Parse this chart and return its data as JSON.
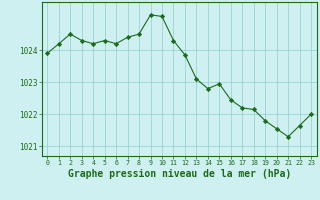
{
  "x": [
    0,
    1,
    2,
    3,
    4,
    5,
    6,
    7,
    8,
    9,
    10,
    11,
    12,
    13,
    14,
    15,
    16,
    17,
    18,
    19,
    20,
    21,
    22,
    23
  ],
  "y": [
    1023.9,
    1024.2,
    1024.5,
    1024.3,
    1024.2,
    1024.3,
    1024.2,
    1024.4,
    1024.5,
    1025.1,
    1025.05,
    1024.3,
    1023.85,
    1023.1,
    1022.8,
    1022.95,
    1022.45,
    1022.2,
    1022.15,
    1021.8,
    1021.55,
    1021.3,
    1021.65,
    1022.0
  ],
  "line_color": "#1a6b1a",
  "marker": "D",
  "marker_size": 2.2,
  "background_color": "#cff0f0",
  "grid_color": "#8ecece",
  "axis_color": "#1a6b1a",
  "xlabel": "Graphe pression niveau de la mer (hPa)",
  "xlabel_fontsize": 7,
  "ylabel_ticks": [
    1021,
    1022,
    1023,
    1024
  ],
  "ylim": [
    1020.7,
    1025.5
  ],
  "xlim": [
    -0.5,
    23.5
  ],
  "xtick_labels": [
    "0",
    "1",
    "2",
    "3",
    "4",
    "5",
    "6",
    "7",
    "8",
    "9",
    "10",
    "11",
    "12",
    "13",
    "14",
    "15",
    "16",
    "17",
    "18",
    "19",
    "20",
    "21",
    "22",
    "23"
  ]
}
